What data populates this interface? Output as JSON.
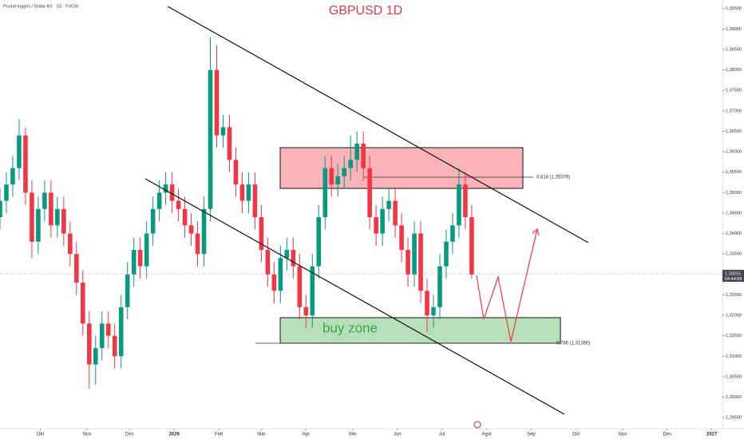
{
  "chart_data": {
    "type": "candlestick",
    "title": "GBPUSD 1D",
    "subtitle": "Pound Inggris / Dollar AS · 1D · FXCM",
    "x": [
      0,
      3,
      6,
      9,
      12,
      15,
      18,
      21,
      24,
      27,
      30,
      33,
      36,
      39,
      42,
      45,
      48,
      51,
      54,
      57,
      60,
      63,
      66,
      69,
      72,
      75,
      78,
      81,
      84,
      87,
      90,
      93,
      96,
      99,
      102,
      105,
      108,
      111,
      114,
      117,
      120,
      123,
      126,
      129,
      132,
      135,
      138,
      141,
      144,
      147,
      150,
      153,
      156,
      159,
      162,
      165,
      168,
      171,
      174,
      177,
      180,
      183,
      186,
      189,
      192,
      195,
      198,
      201,
      204,
      207,
      210,
      213,
      216,
      219,
      222
    ],
    "open": [
      1.344,
      1.348,
      1.352,
      1.356,
      1.364,
      1.35,
      1.338,
      1.346,
      1.35,
      1.342,
      1.346,
      1.34,
      1.335,
      1.328,
      1.318,
      1.308,
      1.312,
      1.318,
      1.315,
      1.31,
      1.322,
      1.33,
      1.336,
      1.332,
      1.34,
      1.346,
      1.35,
      1.352,
      1.348,
      1.346,
      1.342,
      1.34,
      1.335,
      1.346,
      1.38,
      1.364,
      1.366,
      1.358,
      1.352,
      1.348,
      1.352,
      1.344,
      1.336,
      1.33,
      1.326,
      1.334,
      1.336,
      1.332,
      1.322,
      1.32,
      1.332,
      1.344,
      1.356,
      1.352,
      1.354,
      1.356,
      1.358,
      1.362,
      1.356,
      1.344,
      1.34,
      1.346,
      1.348,
      1.342,
      1.336,
      1.33,
      1.34,
      1.326,
      1.32,
      1.322,
      1.332,
      1.338,
      1.342,
      1.352,
      1.344
    ],
    "high": [
      1.351,
      1.355,
      1.359,
      1.368,
      1.366,
      1.353,
      1.349,
      1.353,
      1.353,
      1.349,
      1.349,
      1.343,
      1.338,
      1.331,
      1.321,
      1.315,
      1.321,
      1.321,
      1.318,
      1.325,
      1.333,
      1.339,
      1.339,
      1.343,
      1.349,
      1.353,
      1.355,
      1.355,
      1.351,
      1.349,
      1.345,
      1.343,
      1.349,
      1.388,
      1.386,
      1.369,
      1.369,
      1.361,
      1.355,
      1.355,
      1.355,
      1.347,
      1.339,
      1.333,
      1.337,
      1.339,
      1.339,
      1.335,
      1.325,
      1.335,
      1.347,
      1.359,
      1.359,
      1.357,
      1.359,
      1.364,
      1.365,
      1.365,
      1.359,
      1.347,
      1.349,
      1.351,
      1.351,
      1.345,
      1.339,
      1.343,
      1.343,
      1.329,
      1.325,
      1.335,
      1.341,
      1.345,
      1.356,
      1.355,
      1.347
    ],
    "low": [
      1.341,
      1.345,
      1.349,
      1.353,
      1.347,
      1.334,
      1.335,
      1.343,
      1.339,
      1.339,
      1.337,
      1.332,
      1.325,
      1.315,
      1.302,
      1.303,
      1.309,
      1.312,
      1.307,
      1.307,
      1.319,
      1.327,
      1.329,
      1.329,
      1.337,
      1.343,
      1.347,
      1.345,
      1.343,
      1.339,
      1.337,
      1.332,
      1.332,
      1.343,
      1.361,
      1.361,
      1.355,
      1.349,
      1.345,
      1.345,
      1.341,
      1.333,
      1.327,
      1.323,
      1.323,
      1.331,
      1.329,
      1.319,
      1.317,
      1.317,
      1.329,
      1.341,
      1.349,
      1.349,
      1.351,
      1.353,
      1.355,
      1.353,
      1.341,
      1.337,
      1.337,
      1.343,
      1.339,
      1.333,
      1.327,
      1.327,
      1.323,
      1.316,
      1.317,
      1.319,
      1.329,
      1.335,
      1.339,
      1.341,
      1.329
    ],
    "close": [
      1.348,
      1.352,
      1.356,
      1.364,
      1.35,
      1.338,
      1.346,
      1.35,
      1.342,
      1.346,
      1.34,
      1.335,
      1.328,
      1.318,
      1.308,
      1.312,
      1.318,
      1.315,
      1.31,
      1.322,
      1.33,
      1.336,
      1.332,
      1.34,
      1.346,
      1.35,
      1.352,
      1.348,
      1.346,
      1.342,
      1.34,
      1.335,
      1.346,
      1.38,
      1.364,
      1.366,
      1.358,
      1.352,
      1.348,
      1.352,
      1.344,
      1.336,
      1.33,
      1.326,
      1.334,
      1.336,
      1.332,
      1.322,
      1.32,
      1.332,
      1.344,
      1.356,
      1.352,
      1.354,
      1.356,
      1.358,
      1.362,
      1.356,
      1.344,
      1.34,
      1.346,
      1.348,
      1.342,
      1.336,
      1.33,
      1.34,
      1.326,
      1.32,
      1.322,
      1.332,
      1.338,
      1.342,
      1.352,
      1.344,
      1.33
    ],
    "up_color": "#089981",
    "down_color": "#f23645",
    "xlim": [
      0,
      340
    ],
    "xticks": [
      {
        "value": 19,
        "label": "Okt"
      },
      {
        "value": 41,
        "label": "Nov"
      },
      {
        "value": 61,
        "label": "Des"
      },
      {
        "value": 82,
        "label": "2026"
      },
      {
        "value": 103,
        "label": "Feb"
      },
      {
        "value": 123,
        "label": "Mar"
      },
      {
        "value": 144,
        "label": "Apr"
      },
      {
        "value": 166,
        "label": "Mei"
      },
      {
        "value": 187,
        "label": "Jun"
      },
      {
        "value": 208,
        "label": "Jul"
      },
      {
        "value": 229,
        "label": "Agst"
      },
      {
        "value": 250,
        "label": "Sep"
      },
      {
        "value": 271,
        "label": "Okt"
      },
      {
        "value": 293,
        "label": "Nov"
      },
      {
        "value": 314,
        "label": "Des"
      },
      {
        "value": 335,
        "label": "2027"
      }
    ],
    "ylim": [
      1.2927,
      1.3971
    ],
    "yticks": [
      {
        "value": 1.295,
        "label": "1,29500"
      },
      {
        "value": 1.3,
        "label": "1,30000"
      },
      {
        "value": 1.305,
        "label": "1,30500"
      },
      {
        "value": 1.31,
        "label": "1,31000"
      },
      {
        "value": 1.315,
        "label": "1,31500"
      },
      {
        "value": 1.32,
        "label": "1,32000"
      },
      {
        "value": 1.325,
        "label": "1,32500"
      },
      {
        "value": 1.33,
        "label": "1,33000"
      },
      {
        "value": 1.335,
        "label": "1,33500"
      },
      {
        "value": 1.34,
        "label": "1,34000"
      },
      {
        "value": 1.345,
        "label": "1,34500"
      },
      {
        "value": 1.35,
        "label": "1,35000"
      },
      {
        "value": 1.355,
        "label": "1,35500"
      },
      {
        "value": 1.36,
        "label": "1,36000"
      },
      {
        "value": 1.365,
        "label": "1,36500"
      },
      {
        "value": 1.37,
        "label": "1,37000"
      },
      {
        "value": 1.375,
        "label": "1,37500"
      },
      {
        "value": 1.38,
        "label": "1,38000"
      },
      {
        "value": 1.385,
        "label": "1,38500"
      },
      {
        "value": 1.39,
        "label": "1,39000"
      },
      {
        "value": 1.395,
        "label": "1,39500"
      }
    ],
    "grid": false,
    "last_price": {
      "value": 1.33015,
      "label": "1,33015"
    },
    "countdown": "04:44:58",
    "annotations": [
      "0,618 (1,35379)",
      "0,786 (1,31360)",
      "buy zone"
    ]
  }
}
